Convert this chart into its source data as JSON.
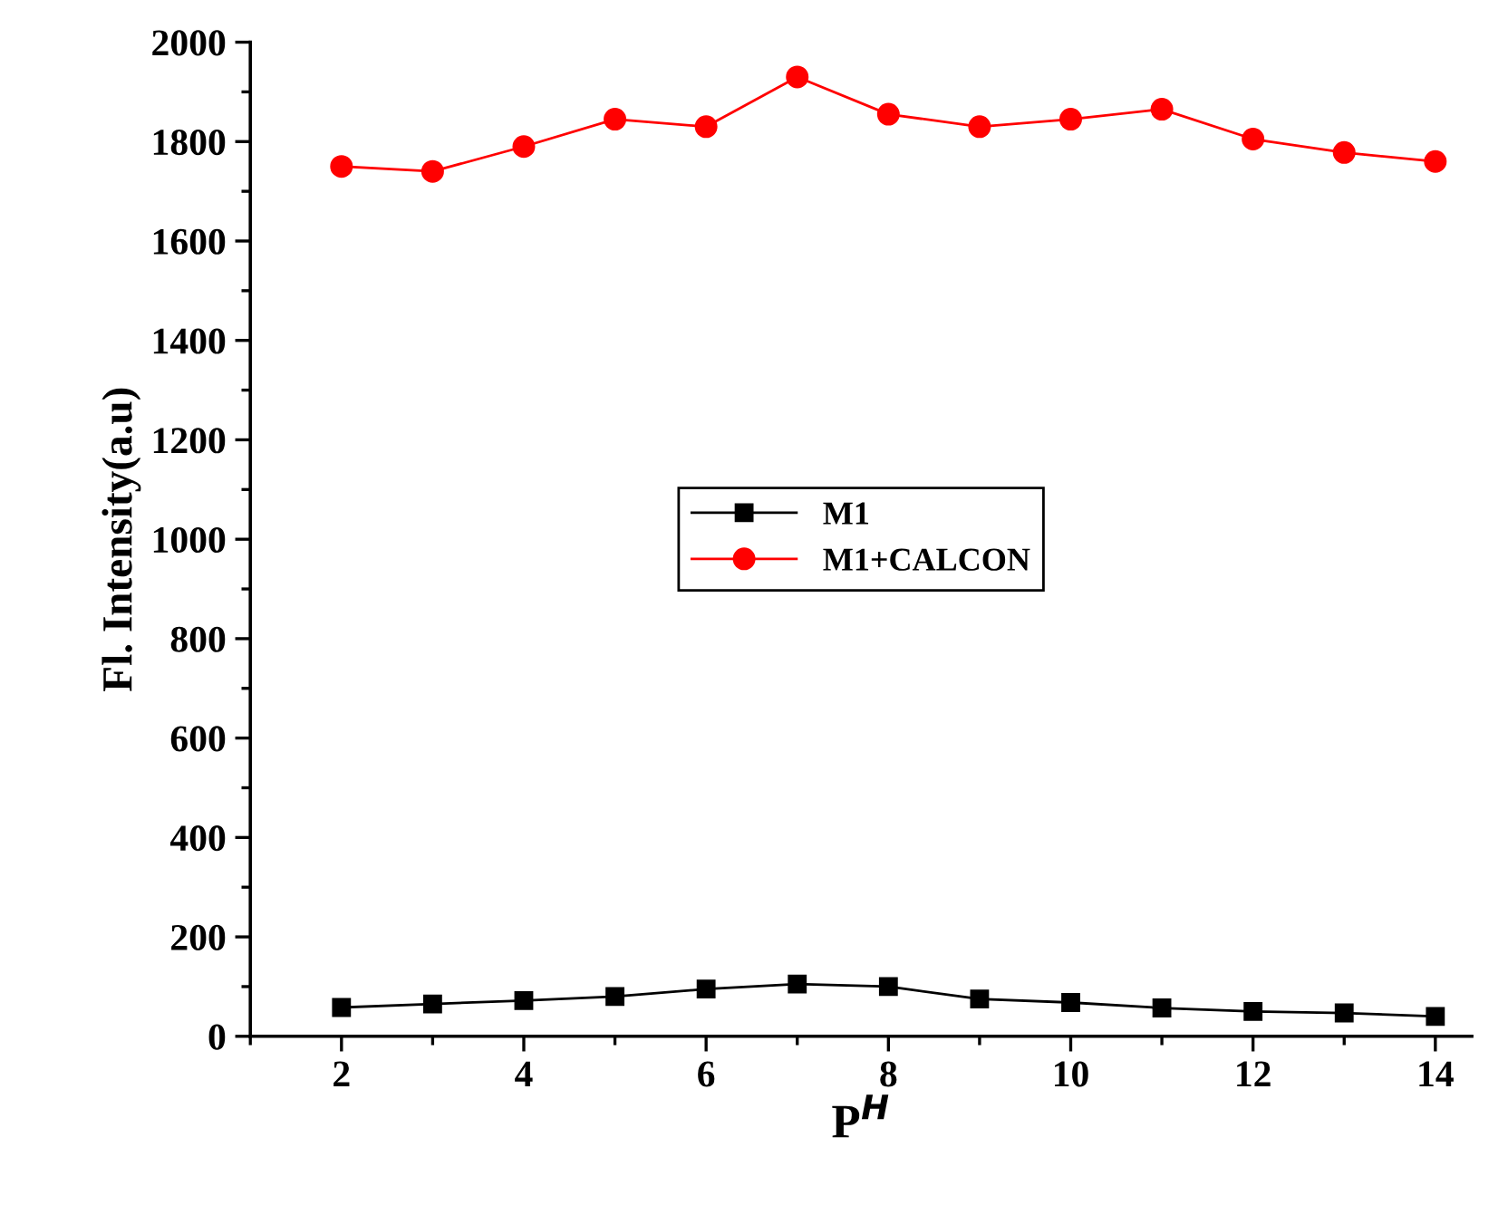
{
  "chart_data": {
    "type": "line",
    "xlabel": "P$^{H}$",
    "ylabel": "Fl. Intensity(a.u)",
    "x": [
      2,
      3,
      4,
      5,
      6,
      7,
      8,
      9,
      10,
      11,
      12,
      13,
      14
    ],
    "series": [
      {
        "name": "M1",
        "color": "#000000",
        "marker": "square",
        "values": [
          58,
          65,
          72,
          80,
          95,
          105,
          100,
          75,
          68,
          57,
          50,
          47,
          40
        ]
      },
      {
        "name": "M1+CALCON",
        "color": "#ff0000",
        "marker": "circle",
        "values": [
          1750,
          1740,
          1790,
          1845,
          1830,
          1930,
          1855,
          1830,
          1845,
          1865,
          1805,
          1778,
          1760
        ]
      }
    ],
    "xlim": [
      1.0,
      14.4
    ],
    "xticks": [
      2,
      4,
      6,
      8,
      10,
      12,
      14
    ],
    "ylim": [
      0,
      2000
    ],
    "yticks": [
      0,
      200,
      400,
      600,
      800,
      1000,
      1200,
      1400,
      1600,
      1800,
      2000
    ],
    "grid": false,
    "legend": "center",
    "line_style": "solid"
  }
}
